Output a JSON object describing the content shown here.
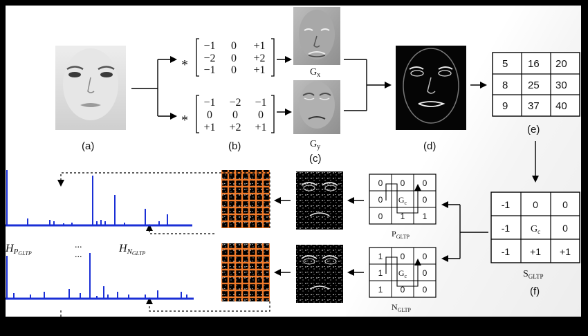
{
  "labels": {
    "a": "(a)",
    "b": "(b)",
    "c": "(c)",
    "d": "(d)",
    "e": "(e)",
    "f": "(f)"
  },
  "gradient_labels": {
    "gx_main": "G",
    "gx_sub": "x",
    "gy_main": "G",
    "gy_sub": "y"
  },
  "conv_operator": "*",
  "kernel_x": [
    [
      "−1",
      "0",
      "+1"
    ],
    [
      "−2",
      "0",
      "+2"
    ],
    [
      "−1",
      "0",
      "+1"
    ]
  ],
  "kernel_y": [
    [
      "−1",
      "−2",
      "−1"
    ],
    [
      "0",
      "0",
      "0"
    ],
    [
      "+1",
      "+2",
      "+1"
    ]
  ],
  "magnitude_grid": [
    [
      "5",
      "16",
      "20"
    ],
    [
      "8",
      "25",
      "30"
    ],
    [
      "9",
      "37",
      "40"
    ]
  ],
  "s_gltp": [
    [
      "-1",
      "0",
      "0"
    ],
    [
      "-1",
      "Gc",
      "0"
    ],
    [
      "-1",
      "+1",
      "+1"
    ]
  ],
  "s_gltp_title": "S",
  "s_gltp_sub": "GLTP",
  "p_gltp": [
    [
      "0",
      "0",
      "0"
    ],
    [
      "0",
      "Gc",
      "0"
    ],
    [
      "0",
      "1",
      "1"
    ]
  ],
  "p_gltp_title": "P",
  "p_gltp_sub": "GLTP",
  "n_gltp": [
    [
      "1",
      "0",
      "0"
    ],
    [
      "1",
      "Gc",
      "0"
    ],
    [
      "1",
      "0",
      "0"
    ]
  ],
  "n_gltp_title": "N",
  "n_gltp_sub": "GLTP",
  "center_main": "G",
  "center_sub": "c",
  "hist_labels": {
    "hp_main": "H",
    "hp_sub": "P",
    "hp_subsub": "GLTP",
    "hn_main": "H",
    "hn_sub": "N",
    "hn_subsub": "GLTP",
    "dots": "..."
  },
  "colors": {
    "histogram": "#1a2fd6",
    "grid_overlay": "#f07a2a",
    "arrow": "#000000"
  }
}
